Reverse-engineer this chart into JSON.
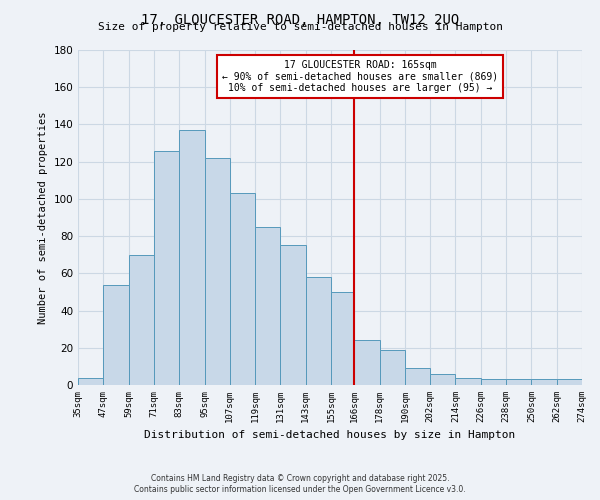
{
  "title": "17, GLOUCESTER ROAD, HAMPTON, TW12 2UQ",
  "subtitle": "Size of property relative to semi-detached houses in Hampton",
  "xlabel": "Distribution of semi-detached houses by size in Hampton",
  "ylabel": "Number of semi-detached properties",
  "bin_labels": [
    "35sqm",
    "47sqm",
    "59sqm",
    "71sqm",
    "83sqm",
    "95sqm",
    "107sqm",
    "119sqm",
    "131sqm",
    "143sqm",
    "155sqm",
    "166sqm",
    "178sqm",
    "190sqm",
    "202sqm",
    "214sqm",
    "226sqm",
    "238sqm",
    "250sqm",
    "262sqm",
    "274sqm"
  ],
  "bin_edges": [
    35,
    47,
    59,
    71,
    83,
    95,
    107,
    119,
    131,
    143,
    155,
    166,
    178,
    190,
    202,
    214,
    226,
    238,
    250,
    262,
    274
  ],
  "bar_heights": [
    4,
    54,
    70,
    126,
    137,
    122,
    103,
    85,
    75,
    58,
    50,
    24,
    19,
    9,
    6,
    4,
    3,
    3,
    3,
    3
  ],
  "bar_color": "#c8d8e8",
  "bar_edge_color": "#5599bb",
  "property_label_line1": "17 GLOUCESTER ROAD: 165sqm",
  "property_label_line2": "← 90% of semi-detached houses are smaller (869)",
  "property_label_line3": "10% of semi-detached houses are larger (95) →",
  "smaller_pct": 90,
  "smaller_count": 869,
  "larger_pct": 10,
  "larger_count": 95,
  "vline_color": "#cc0000",
  "vline_x": 166,
  "ylim": [
    0,
    180
  ],
  "yticks": [
    0,
    20,
    40,
    60,
    80,
    100,
    120,
    140,
    160,
    180
  ],
  "grid_color": "#ccd8e4",
  "background_color": "#eef2f7",
  "footnote1": "Contains HM Land Registry data © Crown copyright and database right 2025.",
  "footnote2": "Contains public sector information licensed under the Open Government Licence v3.0."
}
